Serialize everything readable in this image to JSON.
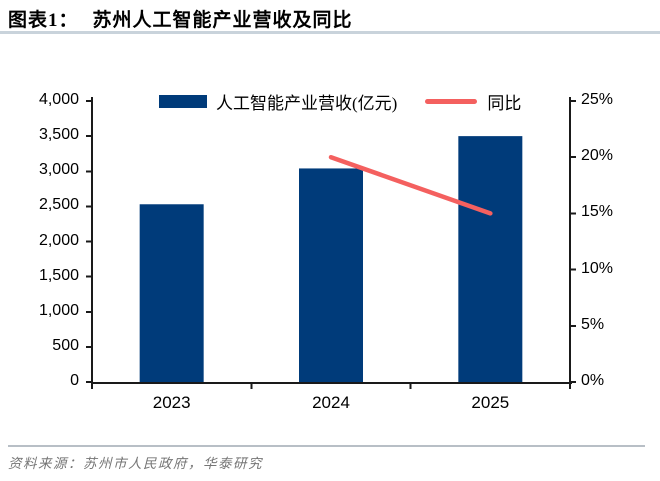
{
  "header": {
    "figure_label": "图表1：",
    "title": "苏州人工智能产业营收及同比"
  },
  "footer": {
    "source_note": "资料来源：苏州市人民政府，华泰研究"
  },
  "colors": {
    "bar": "#003B7A",
    "line": "#F4605F",
    "axis": "#1a1a1a",
    "title_rule": "#C9D3DB",
    "footer_rule": "#B8BFC6",
    "source_text": "#757575"
  },
  "chart_data": {
    "type": "bar",
    "title": "苏州人工智能产业营收及同比",
    "categories": [
      "2023",
      "2024",
      "2025"
    ],
    "series": [
      {
        "name": "人工智能产业营收(亿元)",
        "type": "bar",
        "axis": "left",
        "values": [
          2530,
          3040,
          3500
        ]
      },
      {
        "name": "同比",
        "type": "line",
        "axis": "right",
        "unit": "%",
        "values": [
          null,
          20,
          15
        ]
      }
    ],
    "left_axis": {
      "min": 0,
      "max": 4000,
      "step": 500,
      "tick_labels": [
        "0",
        "500",
        "1,000",
        "1,500",
        "2,000",
        "2,500",
        "3,000",
        "3,500",
        "4,000"
      ]
    },
    "right_axis": {
      "min": 0,
      "max": 25,
      "step": 5,
      "tick_labels": [
        "0%",
        "5%",
        "10%",
        "15%",
        "20%",
        "25%"
      ]
    },
    "grid": false,
    "legend_position": "top"
  }
}
